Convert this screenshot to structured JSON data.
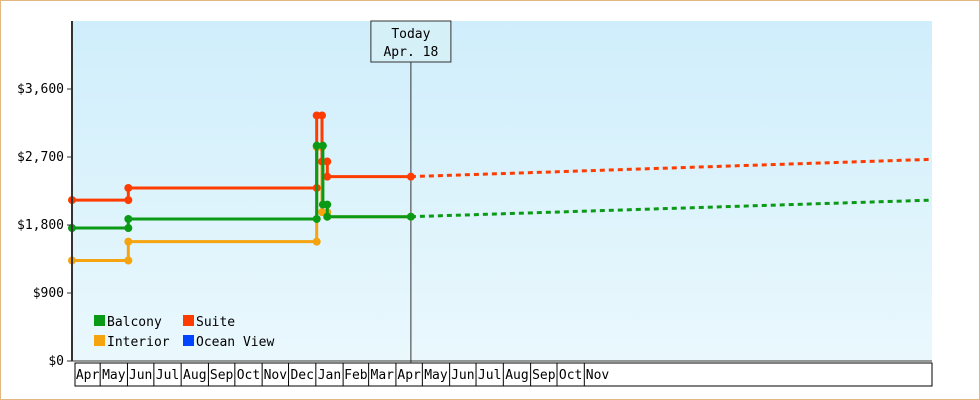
{
  "chart_data": {
    "type": "line",
    "title": "",
    "xlabel": "",
    "ylabel": "",
    "ylim": [
      0,
      4500
    ],
    "yticks": [
      0,
      900,
      1800,
      2700,
      3600
    ],
    "ytick_labels": [
      "$0",
      "$900",
      "$1,800",
      "$2,700",
      "$3,600"
    ],
    "x_domain": [
      "2023-03-30",
      "2025-12-01"
    ],
    "month_labels": [
      {
        "label": "Apr",
        "start": "2023-04-01",
        "end": "2023-05-01"
      },
      {
        "label": "May",
        "start": "2023-05-01",
        "end": "2023-06-01"
      },
      {
        "label": "Jun",
        "start": "2023-06-01",
        "end": "2023-07-01"
      },
      {
        "label": "Jul",
        "start": "2023-07-01",
        "end": "2023-08-01"
      },
      {
        "label": "Aug",
        "start": "2023-08-01",
        "end": "2023-09-01"
      },
      {
        "label": "Sep",
        "start": "2023-09-01",
        "end": "2023-10-01"
      },
      {
        "label": "Oct",
        "start": "2023-10-01",
        "end": "2023-11-01"
      },
      {
        "label": "Nov",
        "start": "2023-11-01",
        "end": "2023-12-01"
      },
      {
        "label": "Dec",
        "start": "2023-12-01",
        "end": "2024-01-01"
      },
      {
        "label": "Jan",
        "start": "2024-01-01",
        "end": "2024-02-01"
      },
      {
        "label": "Feb",
        "start": "2024-02-01",
        "end": "2024-03-01"
      },
      {
        "label": "Mar",
        "start": "2024-03-01",
        "end": "2024-04-01"
      },
      {
        "label": "Apr",
        "start": "2024-04-01",
        "end": "2024-05-01"
      },
      {
        "label": "May",
        "start": "2024-05-01",
        "end": "2024-06-01"
      },
      {
        "label": "Jun",
        "start": "2024-06-01",
        "end": "2024-07-01"
      },
      {
        "label": "Jul",
        "start": "2024-07-01",
        "end": "2024-08-01"
      },
      {
        "label": "Aug",
        "start": "2024-08-01",
        "end": "2024-09-01"
      },
      {
        "label": "Sep",
        "start": "2024-09-01",
        "end": "2024-10-01"
      },
      {
        "label": "Oct",
        "start": "2024-10-01",
        "end": "2024-11-01"
      },
      {
        "label": "Nov",
        "start": "2024-11-01",
        "end": "2024-12-01"
      }
    ],
    "today_marker": {
      "line1": "Today",
      "line2": "Apr. 18",
      "date": "2024-04-18"
    },
    "legend_position": "bottom-left",
    "grid": false,
    "background_gradient": [
      "#cfeefb",
      "#eaf8fd"
    ],
    "series": [
      {
        "name": "Balcony",
        "color": "#0a9a16",
        "points": [
          [
            "2023-03-30",
            1760
          ],
          [
            "2023-06-02",
            1760
          ],
          [
            "2023-06-02",
            1880
          ],
          [
            "2024-01-02",
            1880
          ],
          [
            "2024-01-02",
            2850
          ],
          [
            "2024-01-09",
            2850
          ],
          [
            "2024-01-09",
            2070
          ],
          [
            "2024-01-14",
            2070
          ],
          [
            "2024-01-14",
            1910
          ],
          [
            "2024-04-18",
            1910
          ]
        ],
        "forecast": [
          [
            "2024-04-18",
            1910
          ],
          [
            "2025-12-01",
            2130
          ]
        ]
      },
      {
        "name": "Suite",
        "color": "#ff3c00",
        "points": [
          [
            "2023-03-30",
            2130
          ],
          [
            "2023-06-02",
            2130
          ],
          [
            "2023-06-02",
            2290
          ],
          [
            "2024-01-02",
            2290
          ],
          [
            "2024-01-02",
            3250
          ],
          [
            "2024-01-08",
            3250
          ],
          [
            "2024-01-08",
            2640
          ],
          [
            "2024-01-14",
            2640
          ],
          [
            "2024-01-14",
            2440
          ],
          [
            "2024-04-18",
            2440
          ]
        ],
        "forecast": [
          [
            "2024-04-18",
            2440
          ],
          [
            "2025-12-01",
            2670
          ]
        ]
      },
      {
        "name": "Interior",
        "color": "#f5a30f",
        "points": [
          [
            "2023-03-30",
            1330
          ],
          [
            "2023-06-02",
            1330
          ],
          [
            "2023-06-02",
            1580
          ],
          [
            "2024-01-02",
            1580
          ],
          [
            "2024-01-02",
            2830
          ],
          [
            "2024-01-08",
            2830
          ],
          [
            "2024-01-08",
            1970
          ],
          [
            "2024-01-14",
            1970
          ],
          [
            "2024-01-14",
            1910
          ],
          [
            "2024-04-18",
            1910
          ]
        ],
        "forecast": []
      },
      {
        "name": "Ocean View",
        "color": "#0044ff",
        "points": [],
        "forecast": []
      }
    ]
  }
}
